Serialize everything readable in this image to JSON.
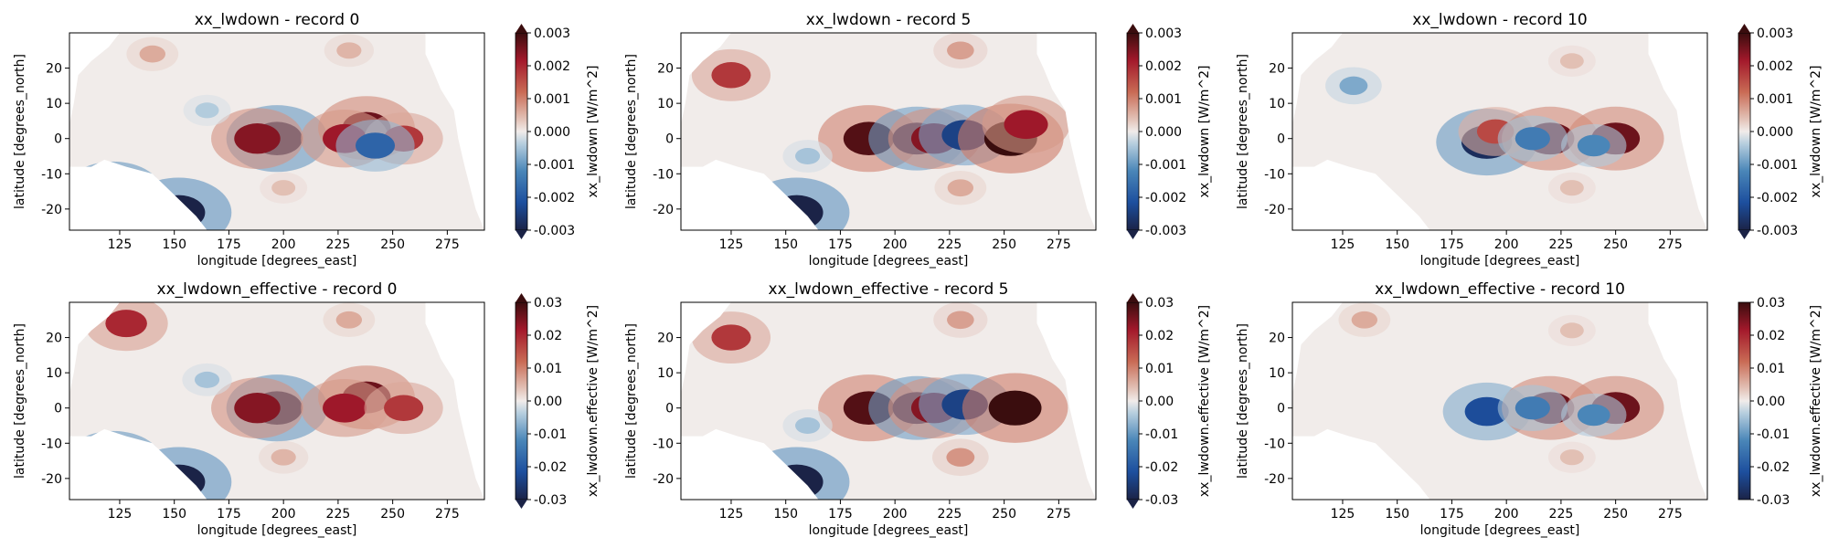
{
  "colors": {
    "neg_deep": "#1b2347",
    "neg_strong": "#1d4f9e",
    "neg_mid": "#4a86b8",
    "neg_light": "#b8cfdf",
    "neutral": "#f1ecea",
    "pos_light": "#e3c4b9",
    "pos_mid": "#c96b55",
    "pos_strong": "#a3192b",
    "pos_deep": "#3a0d0e",
    "land": "#ffffff"
  },
  "chart_data": [
    {
      "type": "heatmap",
      "title": "xx_lwdown - record 0",
      "xlabel": "longitude [degrees_east]",
      "ylabel": "latitude [degrees_north]",
      "xticks": [
        125,
        150,
        175,
        200,
        225,
        250,
        275
      ],
      "yticks": [
        20,
        10,
        0,
        -10,
        -20
      ],
      "xlim": [
        102,
        292
      ],
      "ylim": [
        -26,
        30
      ],
      "colorbar_label": "xx_lwdown [W/m^2]",
      "colorbar_ticks": [
        "0.003",
        "0.002",
        "0.001",
        "0.000",
        "-0.001",
        "-0.002",
        "-0.003"
      ],
      "vmin": -0.003,
      "vmax": 0.003,
      "extend": "both",
      "features": [
        {
          "lon": 197,
          "lat": 0,
          "value": -0.0028
        },
        {
          "lon": 188,
          "lat": 0,
          "value": 0.0024
        },
        {
          "lon": 238,
          "lat": 3,
          "value": 0.0026
        },
        {
          "lon": 228,
          "lat": 0,
          "value": 0.0022
        },
        {
          "lon": 255,
          "lat": 0,
          "value": 0.0018
        },
        {
          "lon": 242,
          "lat": -2,
          "value": -0.0018
        },
        {
          "lon": 152,
          "lat": -21,
          "value": -0.003
        },
        {
          "lon": 122,
          "lat": -16,
          "value": -0.0028
        },
        {
          "lon": 140,
          "lat": 24,
          "value": 0.0006
        },
        {
          "lon": 230,
          "lat": 25,
          "value": 0.0005
        },
        {
          "lon": 200,
          "lat": -14,
          "value": 0.0004
        },
        {
          "lon": 165,
          "lat": 8,
          "value": -0.0004
        }
      ]
    },
    {
      "type": "heatmap",
      "title": "xx_lwdown - record 5",
      "xlabel": "longitude [degrees_east]",
      "ylabel": "latitude [degrees_north]",
      "xticks": [
        125,
        150,
        175,
        200,
        225,
        250,
        275
      ],
      "yticks": [
        20,
        10,
        0,
        -10,
        -20
      ],
      "xlim": [
        102,
        292
      ],
      "ylim": [
        -26,
        30
      ],
      "colorbar_label": "xx_lwdown [W/m^2]",
      "colorbar_ticks": [
        "0.003",
        "0.002",
        "0.001",
        "0.000",
        "-0.001",
        "-0.002",
        "-0.003"
      ],
      "vmin": -0.003,
      "vmax": 0.003,
      "extend": "both",
      "features": [
        {
          "lon": 188,
          "lat": 0,
          "value": 0.0028
        },
        {
          "lon": 210,
          "lat": 0,
          "value": -0.0026
        },
        {
          "lon": 218,
          "lat": 0,
          "value": 0.0024
        },
        {
          "lon": 232,
          "lat": 1,
          "value": -0.0024
        },
        {
          "lon": 253,
          "lat": 0,
          "value": 0.003
        },
        {
          "lon": 260,
          "lat": 4,
          "value": 0.0022
        },
        {
          "lon": 125,
          "lat": 18,
          "value": 0.0018
        },
        {
          "lon": 155,
          "lat": -21,
          "value": -0.003
        },
        {
          "lon": 230,
          "lat": 25,
          "value": 0.0007
        },
        {
          "lon": 230,
          "lat": -14,
          "value": 0.0006
        },
        {
          "lon": 160,
          "lat": -5,
          "value": -0.0005
        }
      ]
    },
    {
      "type": "heatmap",
      "title": "xx_lwdown - record 10",
      "xlabel": "longitude [degrees_east]",
      "ylabel": "latitude [degrees_north]",
      "xticks": [
        125,
        150,
        175,
        200,
        225,
        250,
        275
      ],
      "yticks": [
        20,
        10,
        0,
        -10,
        -20
      ],
      "xlim": [
        102,
        292
      ],
      "ylim": [
        -26,
        30
      ],
      "colorbar_label": "xx_lwdown [W/m^2]",
      "colorbar_ticks": [
        "0.003",
        "0.002",
        "0.001",
        "0.000",
        "-0.001",
        "-0.002",
        "-0.003"
      ],
      "vmin": -0.003,
      "vmax": 0.003,
      "extend": "both",
      "features": [
        {
          "lon": 191,
          "lat": -1,
          "value": -0.0028
        },
        {
          "lon": 195,
          "lat": 2,
          "value": 0.0016
        },
        {
          "lon": 220,
          "lat": 0,
          "value": 0.0026
        },
        {
          "lon": 212,
          "lat": 0,
          "value": -0.0014
        },
        {
          "lon": 250,
          "lat": 0,
          "value": 0.0026
        },
        {
          "lon": 240,
          "lat": -2,
          "value": -0.0012
        },
        {
          "lon": 230,
          "lat": 22,
          "value": 0.0004
        },
        {
          "lon": 130,
          "lat": 15,
          "value": -0.0008
        },
        {
          "lon": 230,
          "lat": -14,
          "value": 0.0004
        }
      ]
    },
    {
      "type": "heatmap",
      "title": "xx_lwdown_effective - record 0",
      "xlabel": "longitude [degrees_east]",
      "ylabel": "latitude [degrees_north]",
      "xticks": [
        125,
        150,
        175,
        200,
        225,
        250,
        275
      ],
      "yticks": [
        20,
        10,
        0,
        -10,
        -20
      ],
      "xlim": [
        102,
        292
      ],
      "ylim": [
        -26,
        30
      ],
      "colorbar_label": "xx_lwdown.effective [W/m^2]",
      "colorbar_ticks": [
        "0.03",
        "0.02",
        "0.01",
        "0.00",
        "-0.01",
        "-0.02",
        "-0.03"
      ],
      "vmin": -0.03,
      "vmax": 0.03,
      "extend": "both",
      "features": [
        {
          "lon": 197,
          "lat": 0,
          "value": -0.028
        },
        {
          "lon": 188,
          "lat": 0,
          "value": 0.024
        },
        {
          "lon": 238,
          "lat": 3,
          "value": 0.026
        },
        {
          "lon": 228,
          "lat": 0,
          "value": 0.022
        },
        {
          "lon": 255,
          "lat": 0,
          "value": 0.018
        },
        {
          "lon": 152,
          "lat": -21,
          "value": -0.03
        },
        {
          "lon": 122,
          "lat": -16,
          "value": -0.028
        },
        {
          "lon": 128,
          "lat": 24,
          "value": 0.02
        },
        {
          "lon": 230,
          "lat": 25,
          "value": 0.006
        },
        {
          "lon": 200,
          "lat": -14,
          "value": 0.005
        },
        {
          "lon": 165,
          "lat": 8,
          "value": -0.005
        }
      ]
    },
    {
      "type": "heatmap",
      "title": "xx_lwdown_effective - record 5",
      "xlabel": "longitude [degrees_east]",
      "ylabel": "latitude [degrees_north]",
      "xticks": [
        125,
        150,
        175,
        200,
        225,
        250,
        275
      ],
      "yticks": [
        20,
        10,
        0,
        -10,
        -20
      ],
      "xlim": [
        102,
        292
      ],
      "ylim": [
        -26,
        30
      ],
      "colorbar_label": "xx_lwdown.effective [W/m^2]",
      "colorbar_ticks": [
        "0.03",
        "0.02",
        "0.01",
        "0.00",
        "-0.01",
        "-0.02",
        "-0.03"
      ],
      "vmin": -0.03,
      "vmax": 0.03,
      "extend": "both",
      "features": [
        {
          "lon": 188,
          "lat": 0,
          "value": 0.028
        },
        {
          "lon": 210,
          "lat": 0,
          "value": -0.026
        },
        {
          "lon": 218,
          "lat": 0,
          "value": 0.024
        },
        {
          "lon": 232,
          "lat": 1,
          "value": -0.024
        },
        {
          "lon": 255,
          "lat": 0,
          "value": 0.03
        },
        {
          "lon": 125,
          "lat": 20,
          "value": 0.018
        },
        {
          "lon": 155,
          "lat": -21,
          "value": -0.03
        },
        {
          "lon": 230,
          "lat": 25,
          "value": 0.007
        },
        {
          "lon": 230,
          "lat": -14,
          "value": 0.008
        },
        {
          "lon": 160,
          "lat": -5,
          "value": -0.005
        }
      ]
    },
    {
      "type": "heatmap",
      "title": "xx_lwdown_effective - record 10",
      "xlabel": "longitude [degrees_east]",
      "ylabel": "latitude [degrees_north]",
      "xticks": [
        125,
        150,
        175,
        200,
        225,
        250,
        275
      ],
      "yticks": [
        20,
        10,
        0,
        -10,
        -20
      ],
      "xlim": [
        102,
        292
      ],
      "ylim": [
        -26,
        30
      ],
      "colorbar_label": "xx_lwdown.effective [W/m^2]",
      "colorbar_ticks": [
        "0.03",
        "0.02",
        "0.01",
        "0.00",
        "-0.01",
        "-0.02",
        "-0.03"
      ],
      "vmin": -0.03,
      "vmax": 0.03,
      "extend": "neither",
      "features": [
        {
          "lon": 191,
          "lat": -1,
          "value": -0.022
        },
        {
          "lon": 220,
          "lat": 0,
          "value": 0.026
        },
        {
          "lon": 250,
          "lat": 0,
          "value": 0.026
        },
        {
          "lon": 212,
          "lat": 0,
          "value": -0.014
        },
        {
          "lon": 240,
          "lat": -2,
          "value": -0.012
        },
        {
          "lon": 230,
          "lat": 22,
          "value": 0.004
        },
        {
          "lon": 135,
          "lat": 25,
          "value": 0.006
        },
        {
          "lon": 230,
          "lat": -14,
          "value": 0.004
        }
      ]
    }
  ]
}
